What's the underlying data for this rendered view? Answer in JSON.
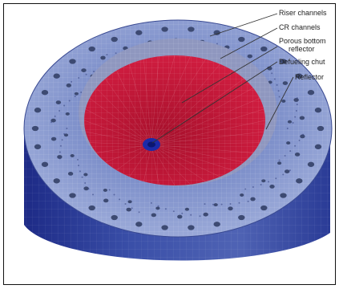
{
  "labels": {
    "riser_channels": "Riser channels",
    "cr_channels": "CR channels",
    "porous_bottom_reflector_line1": "Porous bottom",
    "porous_bottom_reflector_line2": "reflector",
    "defueling_chute": "Defueling chut",
    "reflector": "Reflector"
  },
  "colors": {
    "reflector_mesh": "#5f74b8",
    "reflector_top": "#8d9fd2",
    "reflector_dark": "#23318a",
    "inner_wall": "#8f97bf",
    "pebble_bed": "#c8173a",
    "defueling_chute": "#1c2aa8",
    "channel_holes": "#3d4a72",
    "frame": "#111111",
    "label_text": "#222222",
    "leader_line": "#333333"
  }
}
